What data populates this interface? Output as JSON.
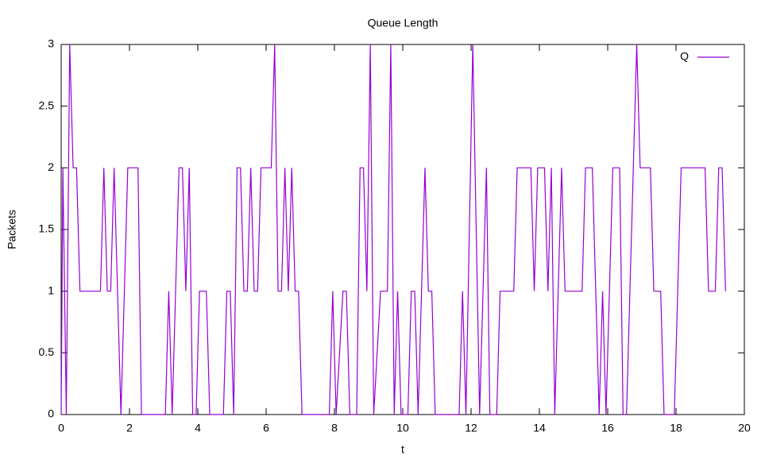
{
  "chart_data": {
    "type": "line",
    "title": "Queue Length",
    "x_label": "t",
    "y_label": "Packets",
    "x": [
      0,
      0.05,
      0.15,
      0.25,
      0.35,
      0.45,
      0.55,
      1.15,
      1.25,
      1.35,
      1.45,
      1.55,
      1.75,
      1.95,
      2.25,
      2.35,
      3.05,
      3.15,
      3.25,
      3.45,
      3.55,
      3.65,
      3.75,
      3.85,
      3.95,
      4.05,
      4.25,
      4.35,
      4.75,
      4.85,
      4.95,
      5.05,
      5.15,
      5.25,
      5.35,
      5.45,
      5.55,
      5.65,
      5.75,
      5.85,
      6.15,
      6.25,
      6.35,
      6.45,
      6.55,
      6.65,
      6.75,
      6.85,
      6.95,
      7.05,
      7.85,
      7.95,
      8.05,
      8.25,
      8.35,
      8.45,
      8.65,
      8.75,
      8.85,
      8.95,
      9.05,
      9.15,
      9.35,
      9.55,
      9.65,
      9.75,
      9.85,
      9.95,
      10.15,
      10.25,
      10.35,
      10.45,
      10.65,
      10.75,
      10.85,
      10.95,
      11.65,
      11.75,
      11.85,
      12.05,
      12.25,
      12.45,
      12.55,
      12.75,
      12.85,
      13.25,
      13.35,
      13.75,
      13.85,
      13.95,
      14.15,
      14.25,
      14.35,
      14.45,
      14.65,
      14.75,
      15.25,
      15.35,
      15.55,
      15.75,
      15.85,
      15.95,
      16.15,
      16.35,
      16.45,
      16.55,
      16.85,
      16.95,
      17.25,
      17.35,
      17.55,
      17.65,
      17.95,
      18.15,
      18.85,
      18.95,
      19.15,
      19.25,
      19.35,
      19.45
    ],
    "series": [
      {
        "name": "Q",
        "color": "#9400d3",
        "values": [
          0,
          2,
          0,
          3,
          2,
          2,
          1,
          1,
          2,
          1,
          1,
          2,
          0,
          2,
          2,
          0,
          0,
          1,
          0,
          2,
          2,
          1,
          2,
          0,
          0,
          1,
          1,
          0,
          0,
          1,
          1,
          0,
          2,
          2,
          1,
          1,
          2,
          1,
          1,
          2,
          2,
          3,
          1,
          1,
          2,
          1,
          2,
          1,
          1,
          0,
          0,
          1,
          0,
          1,
          1,
          0,
          0,
          2,
          2,
          1,
          3,
          0,
          1,
          1,
          3,
          0,
          1,
          0,
          0,
          1,
          1,
          0,
          2,
          1,
          1,
          0,
          0,
          1,
          0,
          3,
          0,
          2,
          0,
          0,
          1,
          1,
          2,
          2,
          1,
          2,
          2,
          1,
          2,
          0,
          2,
          1,
          1,
          2,
          2,
          0,
          1,
          0,
          2,
          2,
          0,
          0,
          3,
          2,
          2,
          1,
          1,
          0,
          0,
          2,
          2,
          1,
          1,
          2,
          2,
          1
        ]
      }
    ],
    "xlim": [
      0,
      20
    ],
    "xticks": [
      0,
      2,
      4,
      6,
      8,
      10,
      12,
      14,
      16,
      18,
      20
    ],
    "ylim": [
      0,
      3
    ],
    "yticks": [
      0,
      0.5,
      1,
      1.5,
      2,
      2.5,
      3
    ],
    "grid": false,
    "legend": "top-right"
  }
}
